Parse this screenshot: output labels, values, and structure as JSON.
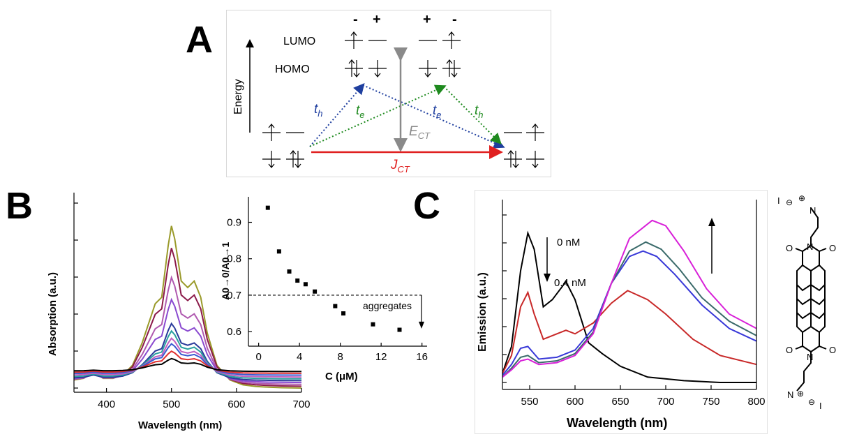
{
  "panels": {
    "a": "A",
    "b": "B",
    "c": "C"
  },
  "diagram": {
    "energy_label": "Energy",
    "lumo_label": "LUMO",
    "homo_label": "HOMO",
    "signs": [
      "-",
      "+",
      "+",
      "-"
    ],
    "th": "t",
    "th_sub": "h",
    "te": "t",
    "te_sub": "e",
    "ect": "E",
    "ect_sub": "CT",
    "jct": "J",
    "jct_sub": "CT",
    "colors": {
      "blue": "#1f3f9f",
      "green": "#1e8a1e",
      "red": "#e02020",
      "gray": "#8a8a8a"
    }
  },
  "chart_data": [
    {
      "id": "B-main",
      "type": "line",
      "xlabel": "Wavelength (nm)",
      "ylabel": "Absorption (a.u.)",
      "xlim": [
        350,
        700
      ],
      "xticks": [
        "400",
        "500",
        "600",
        "700"
      ],
      "x": [
        350,
        365,
        380,
        395,
        410,
        425,
        440,
        455,
        465,
        475,
        485,
        495,
        500,
        505,
        515,
        525,
        535,
        545,
        555,
        570,
        590,
        610,
        630,
        650,
        670,
        700
      ],
      "shape": [
        0.05,
        0.06,
        0.1,
        0.06,
        0.06,
        0.08,
        0.14,
        0.28,
        0.4,
        0.52,
        0.56,
        0.88,
        1.0,
        0.92,
        0.66,
        0.62,
        0.66,
        0.56,
        0.34,
        0.14,
        0.05,
        0.02,
        0.01,
        0.005,
        0.002,
        0.0
      ],
      "series": [
        {
          "scale": 0.88,
          "color": "#9a9a2a"
        },
        {
          "scale": 0.75,
          "color": "#8b1a4a"
        },
        {
          "scale": 0.58,
          "color": "#b05ab0"
        },
        {
          "scale": 0.45,
          "color": "#8a4ad0"
        },
        {
          "scale": 0.31,
          "color": "#2a3a9a"
        },
        {
          "scale": 0.26,
          "color": "#2aa0a0"
        },
        {
          "scale": 0.21,
          "color": "#c060c0"
        },
        {
          "scale": 0.17,
          "color": "#3a5ad0"
        },
        {
          "scale": 0.12,
          "color": "#e03030"
        },
        {
          "scale": 0.07,
          "color": "#000000"
        }
      ]
    },
    {
      "id": "B-inset",
      "type": "scatter",
      "xlabel": "C (μM)",
      "ylabel": "A0→0/A0→1",
      "xlim": [
        -1,
        16.5
      ],
      "ylim": [
        0.56,
        0.97
      ],
      "xticks": [
        "0",
        "4",
        "8",
        "12",
        "16"
      ],
      "yticks": [
        "0.6",
        "0.7",
        "0.8",
        "0.9"
      ],
      "x": [
        0.9,
        2.0,
        3.0,
        3.8,
        4.6,
        5.5,
        7.5,
        8.3,
        11.2,
        13.8
      ],
      "y": [
        0.94,
        0.82,
        0.765,
        0.74,
        0.73,
        0.71,
        0.67,
        0.65,
        0.62,
        0.605
      ],
      "threshold": 0.7,
      "annotation": "aggregates"
    },
    {
      "id": "C",
      "type": "line",
      "xlabel": "Wavelength (nm)",
      "ylabel": "Emission (a.u.)",
      "xlim": [
        520,
        800
      ],
      "xticks": [
        "550",
        "600",
        "650",
        "700",
        "750",
        "800"
      ],
      "annotations": [
        "0 nM",
        "0.4 nM"
      ],
      "series": [
        {
          "color": "#000000",
          "x": [
            520,
            530,
            540,
            548,
            555,
            565,
            575,
            590,
            600,
            615,
            630,
            650,
            680,
            720,
            760,
            800
          ],
          "y": [
            0.05,
            0.2,
            0.62,
            0.83,
            0.74,
            0.42,
            0.46,
            0.56,
            0.46,
            0.22,
            0.16,
            0.09,
            0.03,
            0.01,
            0.0,
            0.0
          ]
        },
        {
          "color": "#c82828",
          "x": [
            520,
            530,
            540,
            548,
            555,
            565,
            580,
            590,
            600,
            620,
            640,
            658,
            680,
            700,
            730,
            760,
            800
          ],
          "y": [
            0.05,
            0.15,
            0.42,
            0.5,
            0.38,
            0.24,
            0.27,
            0.29,
            0.27,
            0.33,
            0.44,
            0.51,
            0.46,
            0.38,
            0.24,
            0.15,
            0.1
          ]
        },
        {
          "color": "#3838d8",
          "x": [
            520,
            530,
            540,
            548,
            560,
            580,
            600,
            620,
            640,
            660,
            675,
            690,
            710,
            740,
            770,
            800
          ],
          "y": [
            0.04,
            0.1,
            0.19,
            0.2,
            0.13,
            0.14,
            0.18,
            0.3,
            0.55,
            0.7,
            0.73,
            0.7,
            0.6,
            0.43,
            0.3,
            0.23
          ]
        },
        {
          "color": "#3a6a6a",
          "x": [
            520,
            530,
            540,
            548,
            560,
            580,
            600,
            620,
            640,
            660,
            678,
            695,
            715,
            740,
            770,
            800
          ],
          "y": [
            0.03,
            0.08,
            0.14,
            0.15,
            0.11,
            0.12,
            0.16,
            0.28,
            0.55,
            0.73,
            0.78,
            0.74,
            0.63,
            0.47,
            0.34,
            0.26
          ]
        },
        {
          "color": "#d820d8",
          "x": [
            520,
            530,
            540,
            548,
            560,
            580,
            600,
            620,
            640,
            660,
            685,
            700,
            720,
            745,
            770,
            800
          ],
          "y": [
            0.03,
            0.07,
            0.12,
            0.13,
            0.1,
            0.11,
            0.15,
            0.27,
            0.55,
            0.8,
            0.9,
            0.87,
            0.73,
            0.52,
            0.38,
            0.3
          ]
        }
      ]
    }
  ],
  "molecule": {
    "iodide": "I",
    "nitrogen": "N",
    "oxygen": "O",
    "plus": "⊕",
    "minus": "⊖"
  }
}
